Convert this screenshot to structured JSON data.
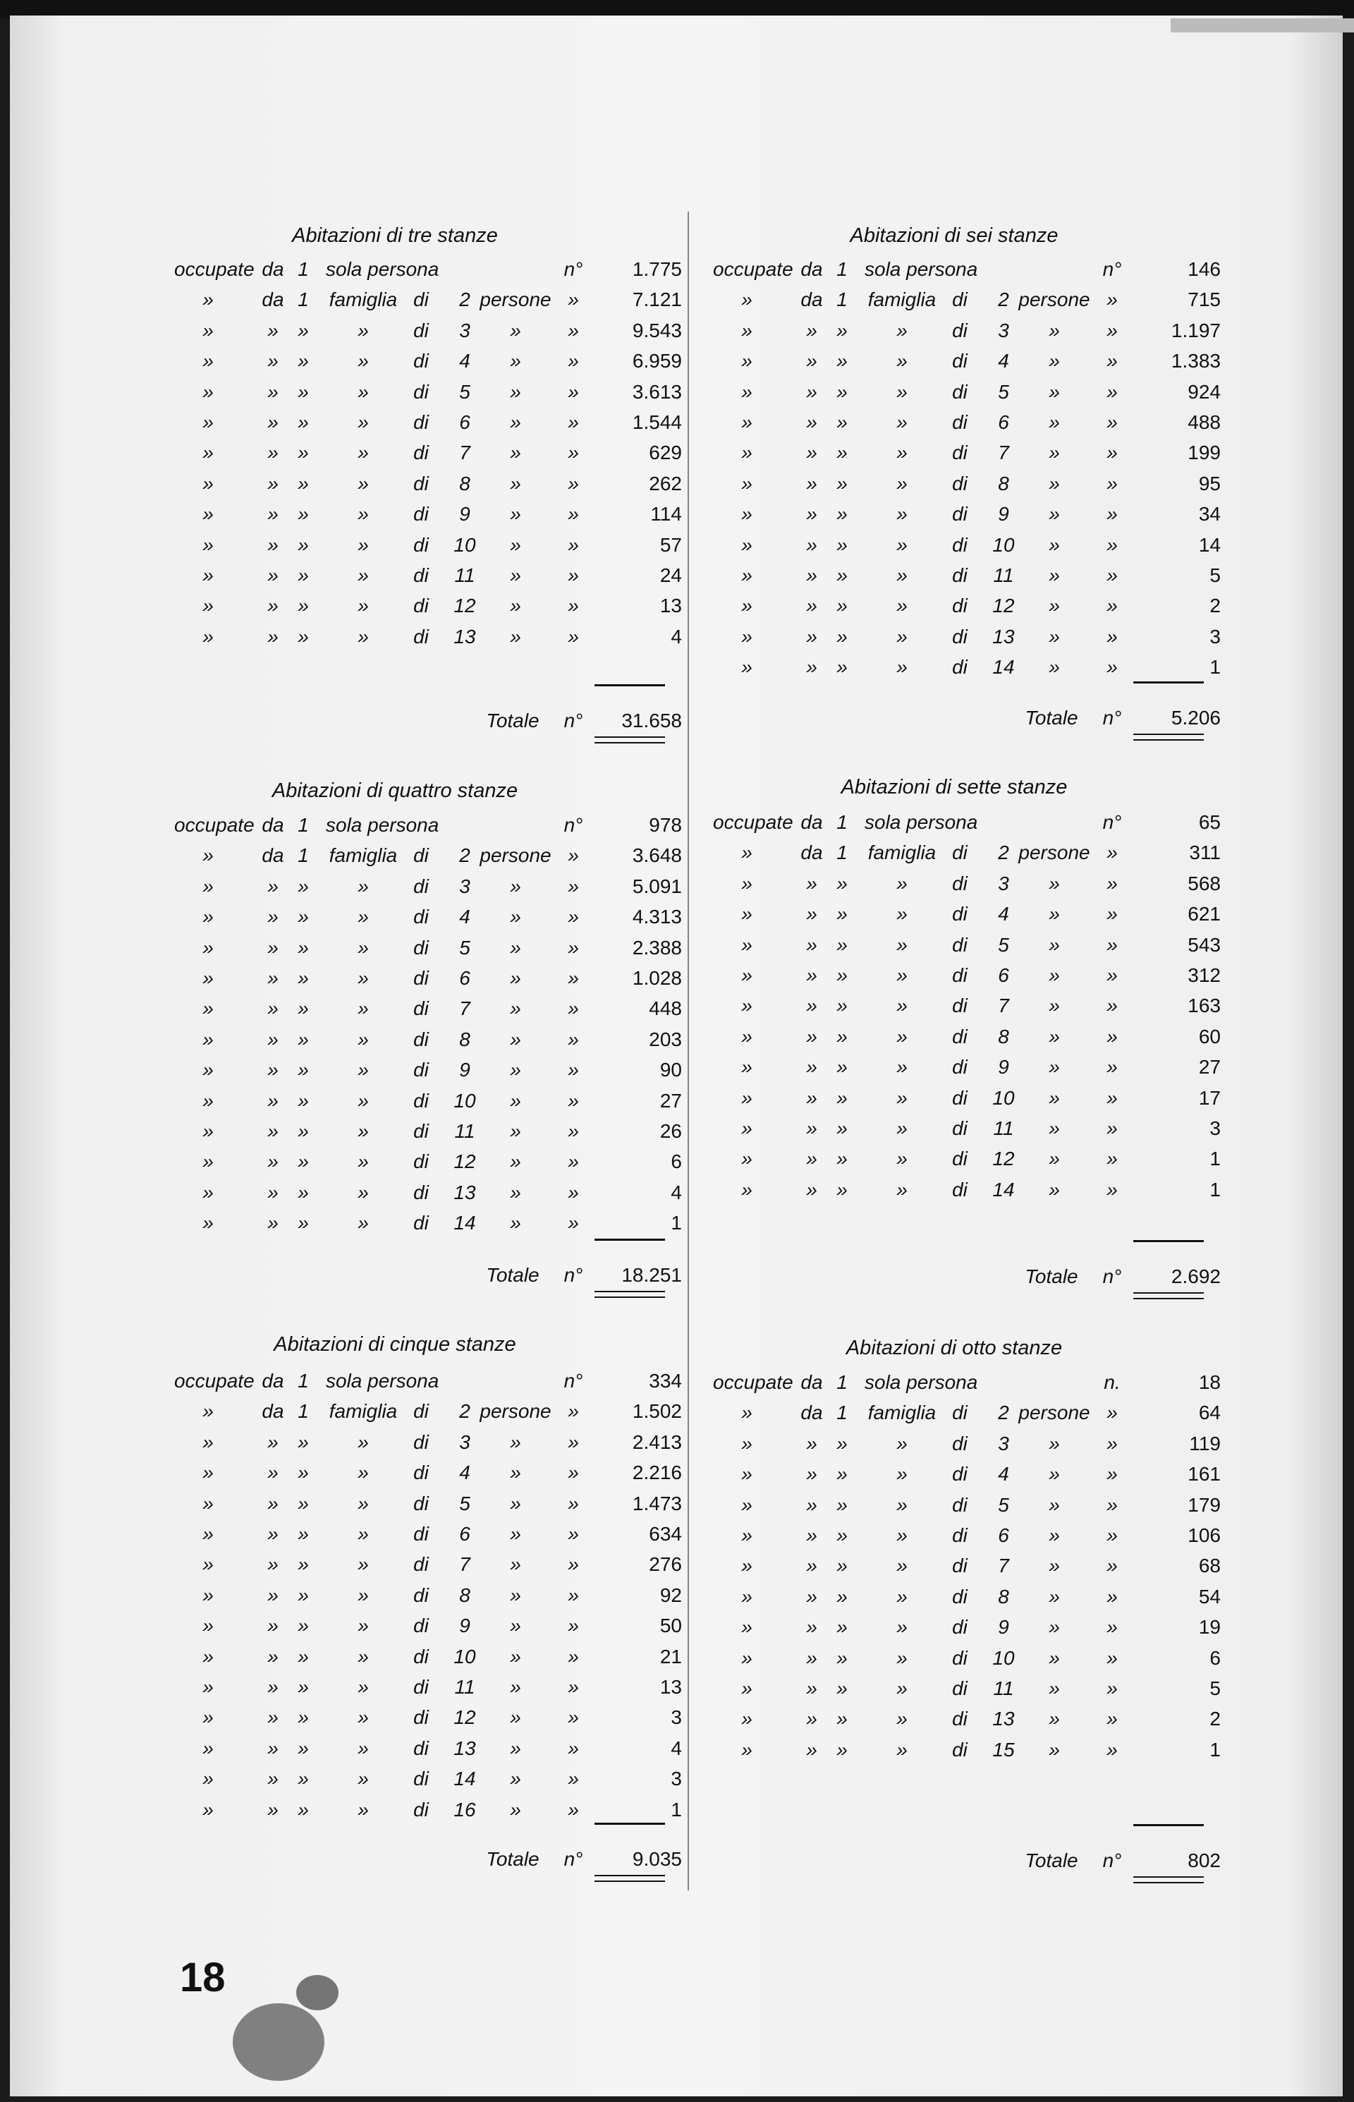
{
  "page_number": "18",
  "columns": [
    {
      "sections": [
        {
          "title": "Abitazioni di tre stanze",
          "rows": [
            [
              "occupate",
              "da",
              "1",
              "sola persona",
              "",
              "",
              "",
              "n°",
              "1.775"
            ],
            [
              "»",
              "da",
              "1",
              "famiglia",
              "di",
              "2",
              "persone",
              "»",
              "7.121"
            ],
            [
              "»",
              "»",
              "»",
              "»",
              "di",
              "3",
              "»",
              "»",
              "9.543"
            ],
            [
              "»",
              "»",
              "»",
              "»",
              "di",
              "4",
              "»",
              "»",
              "6.959"
            ],
            [
              "»",
              "»",
              "»",
              "»",
              "di",
              "5",
              "»",
              "»",
              "3.613"
            ],
            [
              "»",
              "»",
              "»",
              "»",
              "di",
              "6",
              "»",
              "»",
              "1.544"
            ],
            [
              "»",
              "»",
              "»",
              "»",
              "di",
              "7",
              "»",
              "»",
              "629"
            ],
            [
              "»",
              "»",
              "»",
              "»",
              "di",
              "8",
              "»",
              "»",
              "262"
            ],
            [
              "»",
              "»",
              "»",
              "»",
              "di",
              "9",
              "»",
              "»",
              "114"
            ],
            [
              "»",
              "»",
              "»",
              "»",
              "di",
              "10",
              "»",
              "»",
              "57"
            ],
            [
              "»",
              "»",
              "»",
              "»",
              "di",
              "11",
              "»",
              "»",
              "24"
            ],
            [
              "»",
              "»",
              "»",
              "»",
              "di",
              "12",
              "»",
              "»",
              "13"
            ],
            [
              "»",
              "»",
              "»",
              "»",
              "di",
              "13",
              "»",
              "»",
              "4"
            ]
          ],
          "total_label": "Totale",
          "total_unit": "n°",
          "total": "31.658"
        },
        {
          "title": "Abitazioni di quattro stanze",
          "rows": [
            [
              "occupate",
              "da",
              "1",
              "sola persona",
              "",
              "",
              "",
              "n°",
              "978"
            ],
            [
              "»",
              "da",
              "1",
              "famiglia",
              "di",
              "2",
              "persone",
              "»",
              "3.648"
            ],
            [
              "»",
              "»",
              "»",
              "»",
              "di",
              "3",
              "»",
              "»",
              "5.091"
            ],
            [
              "»",
              "»",
              "»",
              "»",
              "di",
              "4",
              "»",
              "»",
              "4.313"
            ],
            [
              "»",
              "»",
              "»",
              "»",
              "di",
              "5",
              "»",
              "»",
              "2.388"
            ],
            [
              "»",
              "»",
              "»",
              "»",
              "di",
              "6",
              "»",
              "»",
              "1.028"
            ],
            [
              "»",
              "»",
              "»",
              "»",
              "di",
              "7",
              "»",
              "»",
              "448"
            ],
            [
              "»",
              "»",
              "»",
              "»",
              "di",
              "8",
              "»",
              "»",
              "203"
            ],
            [
              "»",
              "»",
              "»",
              "»",
              "di",
              "9",
              "»",
              "»",
              "90"
            ],
            [
              "»",
              "»",
              "»",
              "»",
              "di",
              "10",
              "»",
              "»",
              "27"
            ],
            [
              "»",
              "»",
              "»",
              "»",
              "di",
              "11",
              "»",
              "»",
              "26"
            ],
            [
              "»",
              "»",
              "»",
              "»",
              "di",
              "12",
              "»",
              "»",
              "6"
            ],
            [
              "»",
              "»",
              "»",
              "»",
              "di",
              "13",
              "»",
              "»",
              "4"
            ],
            [
              "»",
              "»",
              "»",
              "»",
              "di",
              "14",
              "»",
              "»",
              "1"
            ]
          ],
          "total_label": "Totale",
          "total_unit": "n°",
          "total": "18.251"
        },
        {
          "title": "Abitazioni di cinque stanze",
          "rows": [
            [
              "occupate",
              "da",
              "1",
              "sola persona",
              "",
              "",
              "",
              "n°",
              "334"
            ],
            [
              "»",
              "da",
              "1",
              "famiglia",
              "di",
              "2",
              "persone",
              "»",
              "1.502"
            ],
            [
              "»",
              "»",
              "»",
              "»",
              "di",
              "3",
              "»",
              "»",
              "2.413"
            ],
            [
              "»",
              "»",
              "»",
              "»",
              "di",
              "4",
              "»",
              "»",
              "2.216"
            ],
            [
              "»",
              "»",
              "»",
              "»",
              "di",
              "5",
              "»",
              "»",
              "1.473"
            ],
            [
              "»",
              "»",
              "»",
              "»",
              "di",
              "6",
              "»",
              "»",
              "634"
            ],
            [
              "»",
              "»",
              "»",
              "»",
              "di",
              "7",
              "»",
              "»",
              "276"
            ],
            [
              "»",
              "»",
              "»",
              "»",
              "di",
              "8",
              "»",
              "»",
              "92"
            ],
            [
              "»",
              "»",
              "»",
              "»",
              "di",
              "9",
              "»",
              "»",
              "50"
            ],
            [
              "»",
              "»",
              "»",
              "»",
              "di",
              "10",
              "»",
              "»",
              "21"
            ],
            [
              "»",
              "»",
              "»",
              "»",
              "di",
              "11",
              "»",
              "»",
              "13"
            ],
            [
              "»",
              "»",
              "»",
              "»",
              "di",
              "12",
              "»",
              "»",
              "3"
            ],
            [
              "»",
              "»",
              "»",
              "»",
              "di",
              "13",
              "»",
              "»",
              "4"
            ],
            [
              "»",
              "»",
              "»",
              "»",
              "di",
              "14",
              "»",
              "»",
              "3"
            ],
            [
              "»",
              "»",
              "»",
              "»",
              "di",
              "16",
              "»",
              "»",
              "1"
            ]
          ],
          "total_label": "Totale",
          "total_unit": "n°",
          "total": "9.035"
        }
      ]
    },
    {
      "sections": [
        {
          "title": "Abitazioni di sei stanze",
          "rows": [
            [
              "occupate",
              "da",
              "1",
              "sola persona",
              "",
              "",
              "",
              "n°",
              "146"
            ],
            [
              "»",
              "da",
              "1",
              "famiglia",
              "di",
              "2",
              "persone",
              "»",
              "715"
            ],
            [
              "»",
              "»",
              "»",
              "»",
              "di",
              "3",
              "»",
              "»",
              "1.197"
            ],
            [
              "»",
              "»",
              "»",
              "»",
              "di",
              "4",
              "»",
              "»",
              "1.383"
            ],
            [
              "»",
              "»",
              "»",
              "»",
              "di",
              "5",
              "»",
              "»",
              "924"
            ],
            [
              "»",
              "»",
              "»",
              "»",
              "di",
              "6",
              "»",
              "»",
              "488"
            ],
            [
              "»",
              "»",
              "»",
              "»",
              "di",
              "7",
              "»",
              "»",
              "199"
            ],
            [
              "»",
              "»",
              "»",
              "»",
              "di",
              "8",
              "»",
              "»",
              "95"
            ],
            [
              "»",
              "»",
              "»",
              "»",
              "di",
              "9",
              "»",
              "»",
              "34"
            ],
            [
              "»",
              "»",
              "»",
              "»",
              "di",
              "10",
              "»",
              "»",
              "14"
            ],
            [
              "»",
              "»",
              "»",
              "»",
              "di",
              "11",
              "»",
              "»",
              "5"
            ],
            [
              "»",
              "»",
              "»",
              "»",
              "di",
              "12",
              "»",
              "»",
              "2"
            ],
            [
              "»",
              "»",
              "»",
              "»",
              "di",
              "13",
              "»",
              "»",
              "3"
            ],
            [
              "»",
              "»",
              "»",
              "»",
              "di",
              "14",
              "»",
              "»",
              "1"
            ]
          ],
          "total_label": "Totale",
          "total_unit": "n°",
          "total": "5.206"
        },
        {
          "title": "Abitazioni di sette stanze",
          "rows": [
            [
              "occupate",
              "da",
              "1",
              "sola persona",
              "",
              "",
              "",
              "n°",
              "65"
            ],
            [
              "»",
              "da",
              "1",
              "famiglia",
              "di",
              "2",
              "persone",
              "»",
              "311"
            ],
            [
              "»",
              "»",
              "»",
              "»",
              "di",
              "3",
              "»",
              "»",
              "568"
            ],
            [
              "»",
              "»",
              "»",
              "»",
              "di",
              "4",
              "»",
              "»",
              "621"
            ],
            [
              "»",
              "»",
              "»",
              "»",
              "di",
              "5",
              "»",
              "»",
              "543"
            ],
            [
              "»",
              "»",
              "»",
              "»",
              "di",
              "6",
              "»",
              "»",
              "312"
            ],
            [
              "»",
              "»",
              "»",
              "»",
              "di",
              "7",
              "»",
              "»",
              "163"
            ],
            [
              "»",
              "»",
              "»",
              "»",
              "di",
              "8",
              "»",
              "»",
              "60"
            ],
            [
              "»",
              "»",
              "»",
              "»",
              "di",
              "9",
              "»",
              "»",
              "27"
            ],
            [
              "»",
              "»",
              "»",
              "»",
              "di",
              "10",
              "»",
              "»",
              "17"
            ],
            [
              "»",
              "»",
              "»",
              "»",
              "di",
              "11",
              "»",
              "»",
              "3"
            ],
            [
              "»",
              "»",
              "»",
              "»",
              "di",
              "12",
              "»",
              "»",
              "1"
            ],
            [
              "»",
              "»",
              "»",
              "»",
              "di",
              "14",
              "»",
              "»",
              "1"
            ]
          ],
          "total_label": "Totale",
          "total_unit": "n°",
          "total": "2.692"
        },
        {
          "title": "Abitazioni di otto stanze",
          "rows": [
            [
              "occupate",
              "da",
              "1",
              "sola persona",
              "",
              "",
              "",
              "n.",
              "18"
            ],
            [
              "»",
              "da",
              "1",
              "famiglia",
              "di",
              "2",
              "persone",
              "»",
              "64"
            ],
            [
              "»",
              "»",
              "»",
              "»",
              "di",
              "3",
              "»",
              "»",
              "119"
            ],
            [
              "»",
              "»",
              "»",
              "»",
              "di",
              "4",
              "»",
              "»",
              "161"
            ],
            [
              "»",
              "»",
              "»",
              "»",
              "di",
              "5",
              "»",
              "»",
              "179"
            ],
            [
              "»",
              "»",
              "»",
              "»",
              "di",
              "6",
              "»",
              "»",
              "106"
            ],
            [
              "»",
              "»",
              "»",
              "»",
              "di",
              "7",
              "»",
              "»",
              "68"
            ],
            [
              "»",
              "»",
              "»",
              "»",
              "di",
              "8",
              "»",
              "»",
              "54"
            ],
            [
              "»",
              "»",
              "»",
              "»",
              "di",
              "9",
              "»",
              "»",
              "19"
            ],
            [
              "»",
              "»",
              "»",
              "»",
              "di",
              "10",
              "»",
              "»",
              "6"
            ],
            [
              "»",
              "»",
              "»",
              "»",
              "di",
              "11",
              "»",
              "»",
              "5"
            ],
            [
              "»",
              "»",
              "»",
              "»",
              "di",
              "13",
              "»",
              "»",
              "2"
            ],
            [
              "»",
              "»",
              "»",
              "»",
              "di",
              "15",
              "»",
              "»",
              "1"
            ]
          ],
          "total_label": "Totale",
          "total_unit": "n°",
          "total": "802"
        }
      ]
    }
  ]
}
